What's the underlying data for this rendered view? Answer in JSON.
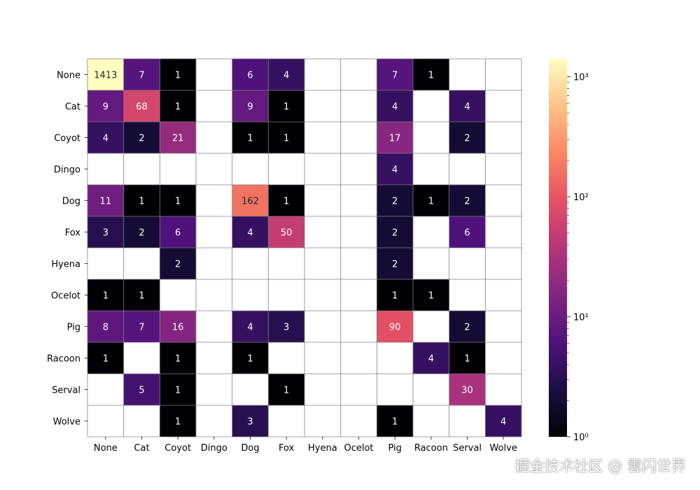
{
  "chart_data": {
    "type": "heatmap",
    "title": "",
    "xlabel": "",
    "ylabel": "",
    "x_labels": [
      "None",
      "Cat",
      "Coyot",
      "Dingo",
      "Dog",
      "Fox",
      "Hyena",
      "Ocelot",
      "Pig",
      "Racoon",
      "Serval",
      "Wolve"
    ],
    "y_labels": [
      "None",
      "Cat",
      "Coyot",
      "Dingo",
      "Dog",
      "Fox",
      "Hyena",
      "Ocelot",
      "Pig",
      "Racoon",
      "Serval",
      "Wolve"
    ],
    "values": [
      [
        1413,
        7,
        1,
        null,
        6,
        4,
        null,
        null,
        7,
        1,
        null,
        null
      ],
      [
        9,
        68,
        1,
        null,
        9,
        1,
        null,
        null,
        4,
        null,
        4,
        null
      ],
      [
        4,
        2,
        21,
        null,
        1,
        1,
        null,
        null,
        17,
        null,
        2,
        null
      ],
      [
        null,
        null,
        null,
        null,
        null,
        null,
        null,
        null,
        4,
        null,
        null,
        null
      ],
      [
        11,
        1,
        1,
        null,
        162,
        1,
        null,
        null,
        2,
        1,
        2,
        null
      ],
      [
        3,
        2,
        6,
        null,
        4,
        50,
        null,
        null,
        2,
        null,
        6,
        null
      ],
      [
        null,
        null,
        2,
        null,
        null,
        null,
        null,
        null,
        2,
        null,
        null,
        null
      ],
      [
        1,
        1,
        null,
        null,
        null,
        null,
        null,
        null,
        1,
        1,
        null,
        null
      ],
      [
        8,
        7,
        16,
        null,
        4,
        3,
        null,
        null,
        90,
        null,
        2,
        null
      ],
      [
        1,
        null,
        1,
        null,
        1,
        null,
        null,
        null,
        null,
        4,
        1,
        null
      ],
      [
        null,
        5,
        1,
        null,
        null,
        1,
        null,
        null,
        null,
        null,
        30,
        null
      ],
      [
        null,
        null,
        1,
        null,
        3,
        null,
        null,
        null,
        1,
        null,
        null,
        4
      ]
    ],
    "colorbar": {
      "scale": "log",
      "range": [
        1,
        1413
      ],
      "colormap": "magma",
      "ticks": [
        {
          "value": 1,
          "label": "10⁰"
        },
        {
          "value": 10,
          "label": "10¹"
        },
        {
          "value": 100,
          "label": "10²"
        },
        {
          "value": 1000,
          "label": "10³"
        }
      ]
    },
    "grid": true,
    "cell_colors": {
      "empty": "#ffffff",
      "grid_line": "#808080"
    }
  },
  "watermark": "掘金技术社区 @ 雲闪世界"
}
